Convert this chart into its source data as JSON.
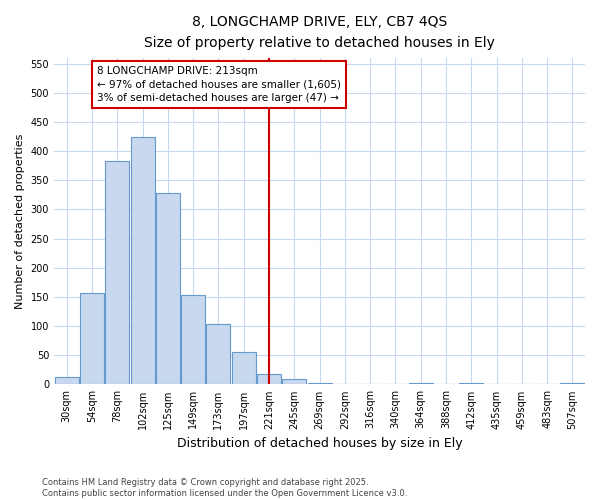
{
  "title_line1": "8, LONGCHAMP DRIVE, ELY, CB7 4QS",
  "title_line2": "Size of property relative to detached houses in Ely",
  "xlabel": "Distribution of detached houses by size in Ely",
  "ylabel": "Number of detached properties",
  "bar_color": "#c8d8ee",
  "bar_edge_color": "#6699cc",
  "bg_color": "#ffffff",
  "grid_color": "#c8d8ee",
  "annotation_text": "8 LONGCHAMP DRIVE: 213sqm\n← 97% of detached houses are smaller (1,605)\n3% of semi-detached houses are larger (47) →",
  "vline_color": "#cc0000",
  "vline_x_bin": 8,
  "categories": [
    "30sqm",
    "54sqm",
    "78sqm",
    "102sqm",
    "125sqm",
    "149sqm",
    "173sqm",
    "197sqm",
    "221sqm",
    "245sqm",
    "269sqm",
    "292sqm",
    "316sqm",
    "340sqm",
    "364sqm",
    "388sqm",
    "412sqm",
    "435sqm",
    "459sqm",
    "483sqm",
    "507sqm"
  ],
  "values": [
    12,
    157,
    383,
    424,
    328,
    153,
    103,
    55,
    18,
    10,
    3,
    1,
    0,
    0,
    3,
    0,
    2,
    0,
    1,
    0,
    2
  ],
  "ylim": [
    0,
    560
  ],
  "yticks": [
    0,
    50,
    100,
    150,
    200,
    250,
    300,
    350,
    400,
    450,
    500,
    550
  ],
  "footer_text": "Contains HM Land Registry data © Crown copyright and database right 2025.\nContains public sector information licensed under the Open Government Licence v3.0.",
  "title_fontsize": 10,
  "subtitle_fontsize": 9,
  "ylabel_fontsize": 8,
  "xlabel_fontsize": 9,
  "tick_fontsize": 7,
  "annot_fontsize": 7.5,
  "footer_fontsize": 6
}
